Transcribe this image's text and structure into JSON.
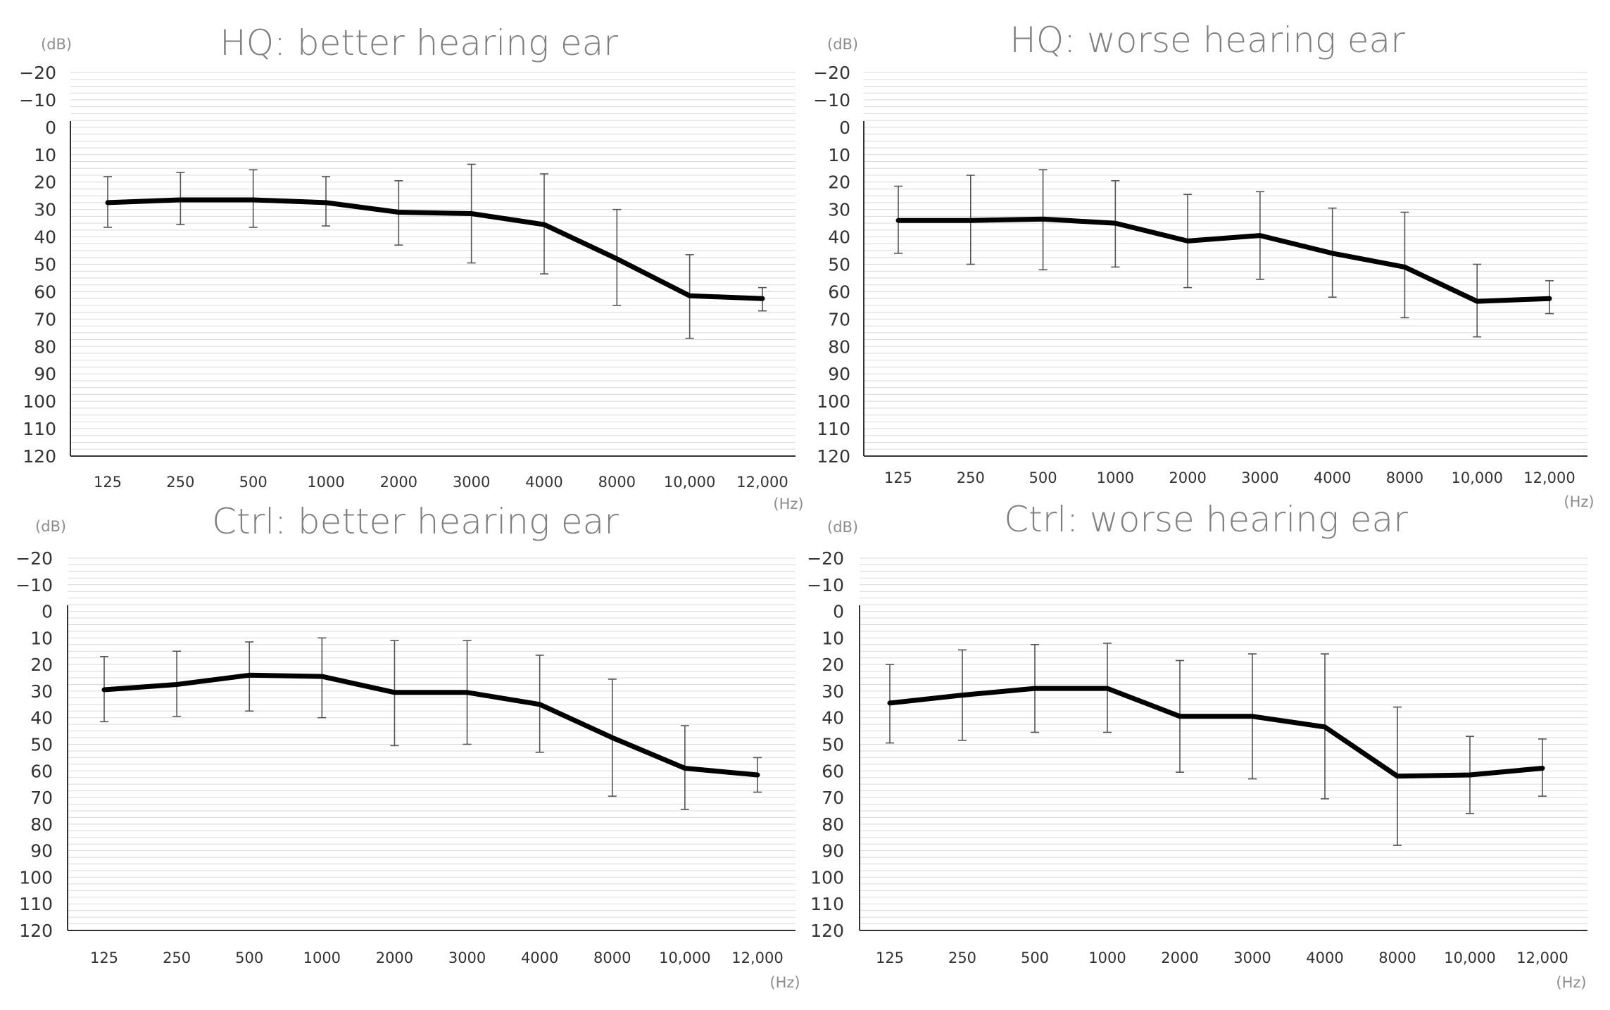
{
  "chart_data": [
    {
      "type": "line",
      "title": "HQ: better hearing ear",
      "y_unit": "(dB)",
      "x_unit": "(Hz)",
      "categories": [
        "125",
        "250",
        "500",
        "1000",
        "2000",
        "3000",
        "4000",
        "8000",
        "10,000",
        "12,000"
      ],
      "y_ticks": [
        "−20",
        "−10",
        "0",
        "10",
        "20",
        "30",
        "40",
        "50",
        "60",
        "70",
        "80",
        "90",
        "100",
        "110",
        "120"
      ],
      "ylim": [
        -20,
        120
      ],
      "y_inverted": true,
      "grid": true,
      "series": [
        {
          "values": [
            27.5,
            26.5,
            26.5,
            27.5,
            31,
            31.5,
            35.5,
            48,
            61.5,
            62.5
          ],
          "error_low": [
            18,
            16.5,
            15.5,
            18,
            19.5,
            13.5,
            17,
            30,
            46.5,
            58.5
          ],
          "error_high": [
            36.5,
            35.5,
            36.5,
            36,
            43,
            49.5,
            53.5,
            65,
            77,
            67
          ]
        }
      ]
    },
    {
      "type": "line",
      "title": "HQ: worse hearing ear",
      "y_unit": "(dB)",
      "x_unit": "(Hz)",
      "categories": [
        "125",
        "250",
        "500",
        "1000",
        "2000",
        "3000",
        "4000",
        "8000",
        "10,000",
        "12,000"
      ],
      "y_ticks": [
        "−20",
        "−10",
        "0",
        "10",
        "20",
        "30",
        "40",
        "50",
        "60",
        "70",
        "80",
        "90",
        "100",
        "110",
        "120"
      ],
      "ylim": [
        -20,
        120
      ],
      "y_inverted": true,
      "grid": true,
      "series": [
        {
          "values": [
            34,
            34,
            33.5,
            35,
            41.5,
            39.5,
            46,
            51,
            63.5,
            62.5
          ],
          "error_low": [
            21.5,
            17.5,
            15.5,
            19.5,
            24.5,
            23.5,
            29.5,
            31,
            50,
            56
          ],
          "error_high": [
            46,
            50,
            52,
            51,
            58.5,
            55.5,
            62,
            69.5,
            76.5,
            68
          ]
        }
      ]
    },
    {
      "type": "line",
      "title": "Ctrl: better hearing ear",
      "y_unit": "(dB)",
      "x_unit": "(Hz)",
      "categories": [
        "125",
        "250",
        "500",
        "1000",
        "2000",
        "3000",
        "4000",
        "8000",
        "10,000",
        "12,000"
      ],
      "y_ticks": [
        "−20",
        "−10",
        "0",
        "10",
        "20",
        "30",
        "40",
        "50",
        "60",
        "70",
        "80",
        "90",
        "100",
        "110",
        "120"
      ],
      "ylim": [
        -20,
        120
      ],
      "y_inverted": true,
      "grid": true,
      "series": [
        {
          "values": [
            29.5,
            27.5,
            24,
            24.5,
            30.5,
            30.5,
            35,
            47.5,
            59,
            61.5
          ],
          "error_low": [
            17,
            15,
            11.5,
            10,
            11,
            11,
            16.5,
            25.5,
            43,
            55
          ],
          "error_high": [
            41.5,
            39.5,
            37.5,
            40,
            50.5,
            50,
            53,
            69.5,
            74.5,
            68
          ]
        }
      ]
    },
    {
      "type": "line",
      "title": "Ctrl: worse hearing ear",
      "y_unit": "(dB)",
      "x_unit": "(Hz)",
      "categories": [
        "125",
        "250",
        "500",
        "1000",
        "2000",
        "3000",
        "4000",
        "8000",
        "10,000",
        "12,000"
      ],
      "y_ticks": [
        "−20",
        "−10",
        "0",
        "10",
        "20",
        "30",
        "40",
        "50",
        "60",
        "70",
        "80",
        "90",
        "100",
        "110",
        "120"
      ],
      "ylim": [
        -20,
        120
      ],
      "y_inverted": true,
      "grid": true,
      "series": [
        {
          "values": [
            34.5,
            31.5,
            29,
            29,
            39.5,
            39.5,
            43.5,
            62,
            61.5,
            59
          ],
          "error_low": [
            20,
            14.5,
            12.5,
            12,
            18.5,
            16,
            16,
            36,
            47,
            48
          ],
          "error_high": [
            49.5,
            48.5,
            45.5,
            45.5,
            60.5,
            63,
            70.5,
            88,
            76,
            69.5
          ]
        }
      ]
    }
  ]
}
